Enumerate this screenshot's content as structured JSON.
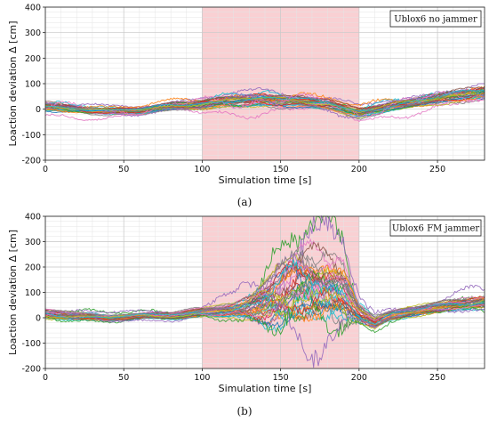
{
  "charts": [
    {
      "caption": "(a)",
      "chart_data": {
        "type": "line",
        "xlabel": "Simulation time [s]",
        "ylabel": "Loaction deviation Δ [cm]",
        "xlim": [
          0,
          280
        ],
        "ylim": [
          -200,
          400
        ],
        "xticks": [
          0,
          50,
          100,
          150,
          200,
          250
        ],
        "yticks": [
          -200,
          -100,
          0,
          100,
          200,
          300,
          400
        ],
        "grid": true,
        "shaded_region": {
          "x_start": 100,
          "x_end": 200,
          "color": "#f9d0d3"
        },
        "legend": {
          "text": "Ublox6 no jammer",
          "placement": "top-right"
        },
        "series_count": 40,
        "series_profile": {
          "x": [
            0,
            20,
            40,
            60,
            80,
            100,
            120,
            140,
            160,
            180,
            200,
            220,
            240,
            260,
            280
          ],
          "mean": [
            10,
            0,
            -10,
            -5,
            10,
            20,
            30,
            35,
            30,
            20,
            -15,
            10,
            30,
            50,
            65
          ],
          "spread": [
            15,
            12,
            10,
            10,
            12,
            15,
            18,
            20,
            18,
            15,
            15,
            15,
            15,
            18,
            20
          ],
          "max_outlier": 100
        }
      }
    },
    {
      "caption": "(b)",
      "chart_data": {
        "type": "line",
        "xlabel": "Simulation time [s]",
        "ylabel": "Loaction deviation Δ [cm]",
        "xlim": [
          0,
          280
        ],
        "ylim": [
          -200,
          400
        ],
        "xticks": [
          0,
          50,
          100,
          150,
          200,
          250
        ],
        "yticks": [
          -200,
          -100,
          0,
          100,
          200,
          300,
          400
        ],
        "grid": true,
        "shaded_region": {
          "x_start": 100,
          "x_end": 200,
          "color": "#f9d0d3"
        },
        "legend": {
          "text": "Ublox6 FM jammer",
          "placement": "top-right"
        },
        "series_count": 40,
        "series_profile": {
          "x": [
            0,
            20,
            40,
            60,
            80,
            100,
            120,
            130,
            140,
            150,
            160,
            170,
            180,
            190,
            200,
            210,
            220,
            240,
            260,
            280
          ],
          "mean": [
            15,
            5,
            0,
            5,
            10,
            20,
            30,
            40,
            60,
            90,
            120,
            130,
            120,
            100,
            20,
            -20,
            10,
            30,
            50,
            60
          ],
          "spread": [
            15,
            12,
            10,
            10,
            12,
            15,
            20,
            40,
            70,
            100,
            120,
            120,
            110,
            90,
            30,
            20,
            15,
            15,
            18,
            20
          ],
          "max_outlier": 400
        }
      }
    }
  ],
  "colors": {
    "shade": "#f9d0d3",
    "grid_major": "#c8c8c8",
    "grid_minor": "#e4e4e4",
    "series_palette": [
      "#1f77b4",
      "#ff7f0e",
      "#2ca02c",
      "#d62728",
      "#9467bd",
      "#8c564b",
      "#e377c2",
      "#7f7f7f",
      "#bcbd22",
      "#17becf"
    ]
  }
}
